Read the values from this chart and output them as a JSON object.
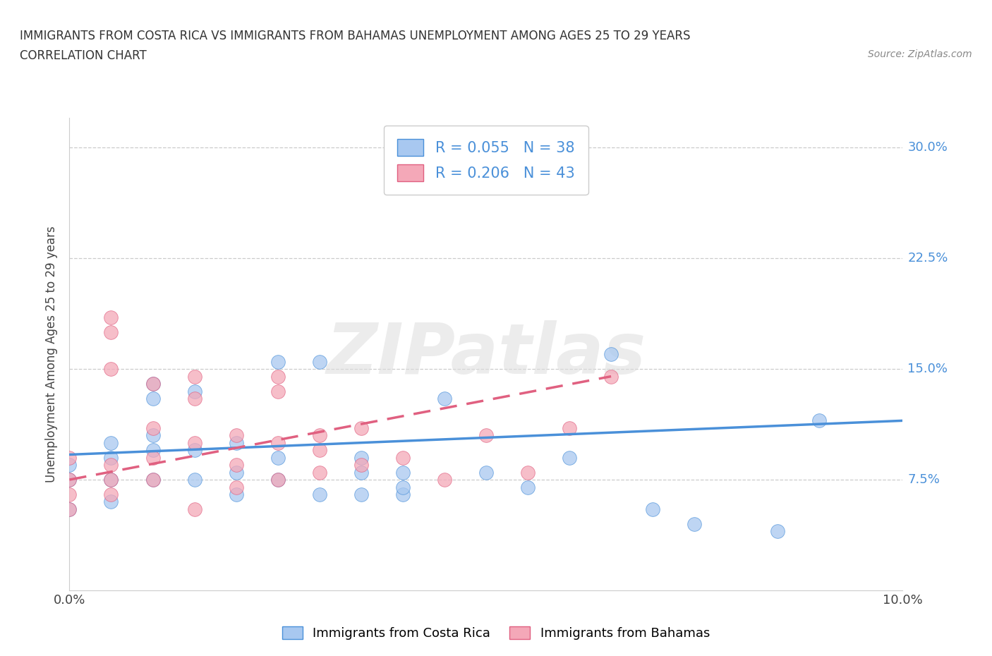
{
  "title_line1": "IMMIGRANTS FROM COSTA RICA VS IMMIGRANTS FROM BAHAMAS UNEMPLOYMENT AMONG AGES 25 TO 29 YEARS",
  "title_line2": "CORRELATION CHART",
  "source": "Source: ZipAtlas.com",
  "ylabel": "Unemployment Among Ages 25 to 29 years",
  "xlim": [
    0.0,
    0.1
  ],
  "ylim": [
    0.0,
    0.32
  ],
  "xticks": [
    0.0,
    0.02,
    0.04,
    0.06,
    0.08,
    0.1
  ],
  "xticklabels": [
    "0.0%",
    "",
    "",
    "",
    "",
    "10.0%"
  ],
  "ytick_positions": [
    0.075,
    0.15,
    0.225,
    0.3
  ],
  "yticklabels": [
    "7.5%",
    "15.0%",
    "22.5%",
    "30.0%"
  ],
  "color_costa_rica": "#a8c8f0",
  "color_bahamas": "#f4a8b8",
  "trendline_color_costa_rica": "#4a90d9",
  "trendline_color_bahamas": "#e06080",
  "watermark": "ZIPatlas",
  "costa_rica_x": [
    0.0,
    0.0,
    0.0,
    0.005,
    0.005,
    0.005,
    0.005,
    0.01,
    0.01,
    0.01,
    0.01,
    0.01,
    0.015,
    0.015,
    0.015,
    0.02,
    0.02,
    0.02,
    0.025,
    0.025,
    0.025,
    0.03,
    0.03,
    0.035,
    0.035,
    0.035,
    0.04,
    0.04,
    0.04,
    0.045,
    0.05,
    0.055,
    0.06,
    0.065,
    0.07,
    0.075,
    0.085,
    0.09
  ],
  "costa_rica_y": [
    0.055,
    0.075,
    0.085,
    0.06,
    0.075,
    0.09,
    0.1,
    0.075,
    0.095,
    0.105,
    0.13,
    0.14,
    0.075,
    0.095,
    0.135,
    0.065,
    0.08,
    0.1,
    0.075,
    0.09,
    0.155,
    0.065,
    0.155,
    0.065,
    0.08,
    0.09,
    0.065,
    0.07,
    0.08,
    0.13,
    0.08,
    0.07,
    0.09,
    0.16,
    0.055,
    0.045,
    0.04,
    0.115
  ],
  "bahamas_x": [
    0.0,
    0.0,
    0.0,
    0.0,
    0.005,
    0.005,
    0.005,
    0.005,
    0.005,
    0.005,
    0.01,
    0.01,
    0.01,
    0.01,
    0.015,
    0.015,
    0.015,
    0.015,
    0.02,
    0.02,
    0.02,
    0.025,
    0.025,
    0.025,
    0.025,
    0.03,
    0.03,
    0.03,
    0.035,
    0.035,
    0.04,
    0.045,
    0.05,
    0.055,
    0.06,
    0.065
  ],
  "bahamas_y": [
    0.055,
    0.065,
    0.075,
    0.09,
    0.065,
    0.075,
    0.085,
    0.15,
    0.175,
    0.185,
    0.075,
    0.09,
    0.11,
    0.14,
    0.055,
    0.1,
    0.13,
    0.145,
    0.07,
    0.085,
    0.105,
    0.075,
    0.1,
    0.135,
    0.145,
    0.08,
    0.095,
    0.105,
    0.085,
    0.11,
    0.09,
    0.075,
    0.105,
    0.08,
    0.11,
    0.145
  ],
  "cr_trend_x0": 0.0,
  "cr_trend_x1": 0.1,
  "cr_trend_y0": 0.092,
  "cr_trend_y1": 0.115,
  "bah_trend_x0": 0.0,
  "bah_trend_x1": 0.065,
  "bah_trend_y0": 0.075,
  "bah_trend_y1": 0.145
}
